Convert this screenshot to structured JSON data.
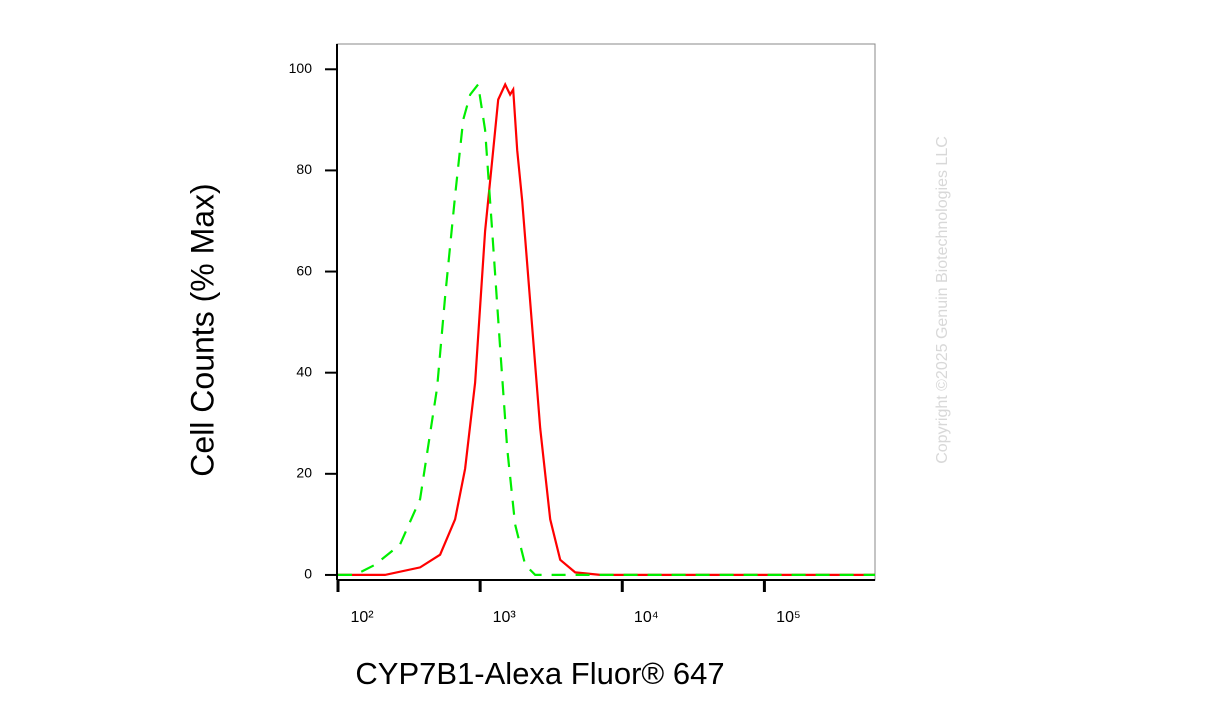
{
  "chart_data": {
    "type": "line",
    "y_label": "Cell Counts (% Max)",
    "x_label": "CYP7B1-Alexa Fluor® 647",
    "watermark": "Copyright ©2025 Genuin Biotechnologies LLC",
    "xscale": "log",
    "xlim": [
      100,
      600000
    ],
    "ylim": [
      -1,
      105
    ],
    "xticks": [
      {
        "value": 100,
        "label": "10²"
      },
      {
        "value": 1000,
        "label": "10³"
      },
      {
        "value": 10000,
        "label": "10⁴"
      },
      {
        "value": 100000,
        "label": "10⁵"
      }
    ],
    "yticks": [
      0,
      20,
      40,
      60,
      80,
      100
    ],
    "grid": false,
    "series": [
      {
        "color": "#ff0000",
        "dashed": false,
        "x": [
          100,
          214,
          378,
          523,
          667,
          784,
          922,
          1084,
          1215,
          1340,
          1500,
          1626,
          1708,
          1822,
          1976,
          2249,
          2646,
          3113,
          3658,
          4667,
          7000,
          35400,
          600000
        ],
        "values": [
          0,
          0,
          1.5,
          4,
          11,
          21,
          38,
          68,
          82,
          94,
          97,
          95,
          96,
          84,
          74,
          54,
          29,
          11,
          3,
          0.5,
          0,
          0,
          0
        ]
      },
      {
        "color": "#00ee00",
        "dashed": true,
        "x": [
          100,
          132,
          182,
          273,
          378,
          498,
          567,
          667,
          760,
          851,
          968,
          1084,
          1215,
          1383,
          1550,
          1763,
          2074,
          2439,
          7000,
          600000
        ],
        "values": [
          0,
          0,
          2,
          6,
          15,
          37,
          55,
          75,
          90,
          95,
          97,
          88,
          68,
          45,
          25,
          10,
          2,
          0,
          0,
          0
        ]
      }
    ]
  }
}
